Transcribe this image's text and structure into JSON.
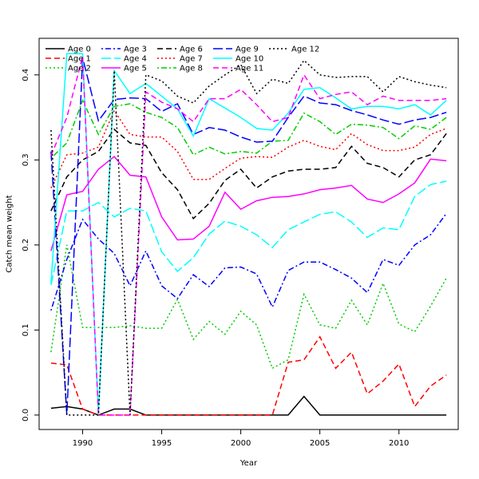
{
  "chart_data": {
    "type": "line",
    "title": "",
    "xlabel": "Year",
    "ylabel": "Catch mean weight",
    "xlim": [
      1987.25,
      2013.75
    ],
    "ylim": [
      -0.017,
      0.443
    ],
    "x_ticks": [
      1990,
      1995,
      2000,
      2005,
      2010
    ],
    "y_ticks": [
      0.0,
      0.1,
      0.2,
      0.3,
      0.4
    ],
    "grid": false,
    "legend_position": "top-left",
    "x": [
      1988,
      1989,
      1990,
      1991,
      1992,
      1993,
      1994,
      1995,
      1996,
      1997,
      1998,
      1999,
      2000,
      2001,
      2002,
      2003,
      2004,
      2005,
      2006,
      2007,
      2008,
      2009,
      2010,
      2011,
      2012,
      2013
    ],
    "series": [
      {
        "name": "Age 0",
        "color": "#000000",
        "dash": "solid",
        "values": [
          0.008,
          0.01,
          0.007,
          0.0,
          0.007,
          0.007,
          0.0,
          0.0,
          0.0,
          0.0,
          0.0,
          0.0,
          0.0,
          0.0,
          0.0,
          0.0,
          0.022,
          0.0,
          0.0,
          0.0,
          0.0,
          0.0,
          0.0,
          0.0,
          0.0,
          0.0
        ]
      },
      {
        "name": "Age 1",
        "color": "#ff0000",
        "dash": "dashed",
        "values": [
          0.061,
          0.059,
          0.007,
          0.0,
          0.0,
          0.0,
          0.0,
          0.0,
          0.0,
          0.0,
          0.0,
          0.0,
          0.0,
          0.0,
          0.0,
          0.062,
          0.065,
          0.092,
          0.055,
          0.074,
          0.025,
          0.04,
          0.06,
          0.01,
          0.034,
          0.047
        ]
      },
      {
        "name": "Age 2",
        "color": "#00cd00",
        "dash": "dotted",
        "values": [
          0.074,
          0.2,
          0.103,
          0.103,
          0.103,
          0.105,
          0.102,
          0.102,
          0.136,
          0.089,
          0.11,
          0.095,
          0.122,
          0.106,
          0.055,
          0.065,
          0.142,
          0.106,
          0.102,
          0.135,
          0.106,
          0.155,
          0.107,
          0.098,
          0.128,
          0.161
        ]
      },
      {
        "name": "Age 3",
        "color": "#0000ff",
        "dash": "dotdash",
        "values": [
          0.123,
          0.183,
          0.23,
          0.207,
          0.19,
          0.152,
          0.193,
          0.152,
          0.137,
          0.165,
          0.151,
          0.173,
          0.174,
          0.166,
          0.127,
          0.17,
          0.18,
          0.18,
          0.171,
          0.161,
          0.144,
          0.183,
          0.176,
          0.2,
          0.212,
          0.237
        ]
      },
      {
        "name": "Age 4",
        "color": "#00ffff",
        "dash": "longdash",
        "values": [
          0.153,
          0.24,
          0.24,
          0.25,
          0.233,
          0.243,
          0.24,
          0.192,
          0.169,
          0.185,
          0.213,
          0.228,
          0.222,
          0.212,
          0.197,
          0.218,
          0.227,
          0.236,
          0.239,
          0.227,
          0.209,
          0.22,
          0.218,
          0.257,
          0.271,
          0.275
        ]
      },
      {
        "name": "Age 5",
        "color": "#ff00ff",
        "dash": "solid",
        "values": [
          0.193,
          0.259,
          0.263,
          0.289,
          0.304,
          0.282,
          0.28,
          0.233,
          0.206,
          0.207,
          0.222,
          0.262,
          0.242,
          0.252,
          0.256,
          0.257,
          0.26,
          0.265,
          0.267,
          0.27,
          0.254,
          0.25,
          0.26,
          0.273,
          0.301,
          0.299
        ]
      },
      {
        "name": "Age 6",
        "color": "#000000",
        "dash": "dashed",
        "values": [
          0.24,
          0.28,
          0.3,
          0.31,
          0.336,
          0.32,
          0.317,
          0.285,
          0.265,
          0.231,
          0.249,
          0.276,
          0.289,
          0.267,
          0.28,
          0.287,
          0.289,
          0.289,
          0.291,
          0.316,
          0.296,
          0.291,
          0.28,
          0.3,
          0.306,
          0.331
        ]
      },
      {
        "name": "Age 7",
        "color": "#ff0000",
        "dash": "dotted",
        "values": [
          0.267,
          0.306,
          0.308,
          0.315,
          0.358,
          0.33,
          0.327,
          0.327,
          0.31,
          0.277,
          0.277,
          0.29,
          0.302,
          0.304,
          0.303,
          0.315,
          0.323,
          0.316,
          0.312,
          0.331,
          0.318,
          0.311,
          0.311,
          0.315,
          0.33,
          0.337
        ]
      },
      {
        "name": "Age 8",
        "color": "#00cd00",
        "dash": "dotdash",
        "values": [
          0.302,
          0.32,
          0.37,
          0.33,
          0.363,
          0.366,
          0.356,
          0.35,
          0.338,
          0.306,
          0.315,
          0.307,
          0.31,
          0.308,
          0.322,
          0.323,
          0.355,
          0.345,
          0.33,
          0.342,
          0.341,
          0.338,
          0.325,
          0.34,
          0.336,
          0.35
        ]
      },
      {
        "name": "Age 9",
        "color": "#0000ff",
        "dash": "longdash",
        "values": [
          0.31,
          0.0,
          0.42,
          0.346,
          0.371,
          0.373,
          0.372,
          0.357,
          0.366,
          0.33,
          0.338,
          0.335,
          0.327,
          0.321,
          0.322,
          0.35,
          0.375,
          0.367,
          0.365,
          0.358,
          0.353,
          0.347,
          0.342,
          0.347,
          0.35,
          0.356
        ]
      },
      {
        "name": "Age 10",
        "color": "#00ffff",
        "dash": "solid",
        "values": [
          0.155,
          0.425,
          0.425,
          0.0,
          0.405,
          0.378,
          0.39,
          0.375,
          0.36,
          0.328,
          0.372,
          0.361,
          0.35,
          0.337,
          0.335,
          0.355,
          0.383,
          0.385,
          0.373,
          0.36,
          0.363,
          0.363,
          0.36,
          0.365,
          0.353,
          0.37
        ]
      },
      {
        "name": "Age 11",
        "color": "#ff00ff",
        "dash": "dashed",
        "values": [
          0.305,
          0.35,
          0.422,
          0.0,
          0.0,
          0.0,
          0.38,
          0.368,
          0.36,
          0.345,
          0.372,
          0.372,
          0.383,
          0.365,
          0.345,
          0.35,
          0.4,
          0.372,
          0.377,
          0.38,
          0.365,
          0.375,
          0.37,
          0.37,
          0.37,
          0.372
        ]
      },
      {
        "name": "Age 12",
        "color": "#000000",
        "dash": "dotted",
        "values": [
          0.335,
          0.0,
          0.0,
          0.0,
          0.405,
          0.0,
          0.4,
          0.393,
          0.375,
          0.367,
          0.387,
          0.4,
          0.412,
          0.378,
          0.395,
          0.39,
          0.417,
          0.4,
          0.397,
          0.398,
          0.398,
          0.38,
          0.398,
          0.392,
          0.388,
          0.385
        ]
      }
    ]
  }
}
